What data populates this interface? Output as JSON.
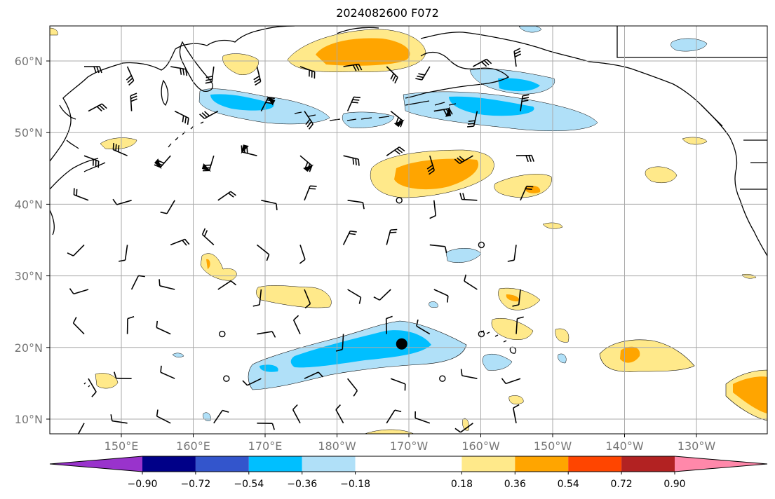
{
  "title": "2024082600 F072",
  "map": {
    "lon_range": [
      140,
      240
    ],
    "lat_range": [
      8,
      65
    ],
    "lon_ticks": [
      150,
      160,
      170,
      180,
      190,
      200,
      210,
      220,
      230
    ],
    "lon_tick_labels": [
      "150°E",
      "160°E",
      "170°E",
      "180°W",
      "170°W",
      "160°W",
      "150°W",
      "140°W",
      "130°W"
    ],
    "lat_ticks": [
      10,
      20,
      30,
      40,
      50,
      60
    ],
    "lat_tick_labels": [
      "10°N",
      "20°N",
      "30°N",
      "40°N",
      "50°N",
      "60°N"
    ],
    "grid": true,
    "storm_marker": {
      "lon": 189,
      "lat": 20.5
    }
  },
  "colorbar": {
    "levels": [
      -0.9,
      -0.72,
      -0.54,
      -0.36,
      -0.18,
      0.18,
      0.36,
      0.54,
      0.72,
      0.9
    ],
    "labels": [
      "−0.90",
      "−0.72",
      "−0.54",
      "−0.36",
      "−0.18",
      "0.18",
      "0.36",
      "0.54",
      "0.72",
      "0.90"
    ],
    "colors": [
      "#9933cc",
      "#000088",
      "#3355cc",
      "#00bfff",
      "#b0e0f8",
      "#ffffff",
      "#ffe98a",
      "#ffa500",
      "#ff4500",
      "#b22222",
      "#ff88aa"
    ]
  },
  "fill_colors": {
    "neg_light": "#b0e0f8",
    "neg_mid": "#00bfff",
    "pos_light": "#ffe98a",
    "pos_mid": "#ffa500"
  }
}
